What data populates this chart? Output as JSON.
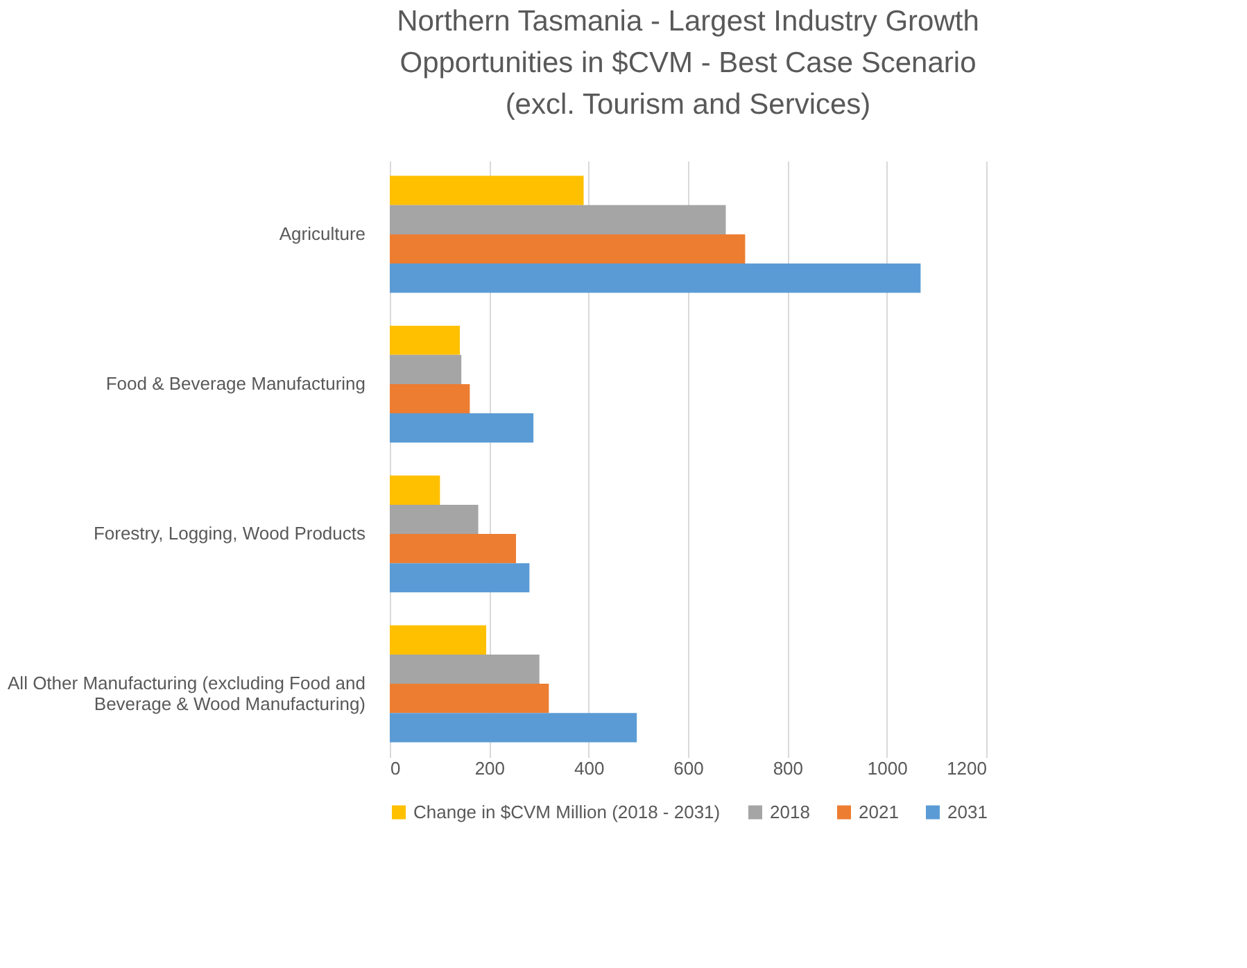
{
  "chart_data": {
    "type": "bar",
    "orientation": "horizontal",
    "title": "Northern Tasmania - Largest Industry Growth Opportunities in $CVM - Best Case Scenario (excl. Tourism and Services)",
    "categories": [
      "Agriculture",
      "Food & Beverage Manufacturing",
      "Forestry, Logging, Wood Products",
      "All Other Manufacturing (excluding Food and Beverage & Wood Manufacturing)"
    ],
    "series": [
      {
        "name": "Change in $CVM Million (2018 - 2031)",
        "color": "#ffc000",
        "values": [
          390,
          141,
          101,
          194
        ]
      },
      {
        "name": "2018",
        "color": "#a5a5a5",
        "values": [
          676,
          144,
          178,
          301
        ]
      },
      {
        "name": "2021",
        "color": "#ed7d31",
        "values": [
          715,
          161,
          254,
          320
        ]
      },
      {
        "name": "2031",
        "color": "#5b9bd5",
        "values": [
          1068,
          289,
          281,
          497
        ]
      }
    ],
    "xlim": [
      0,
      1200
    ],
    "xticks": [
      0,
      200,
      400,
      600,
      800,
      1000,
      1200
    ],
    "grid": "x",
    "legend": "bottom"
  }
}
